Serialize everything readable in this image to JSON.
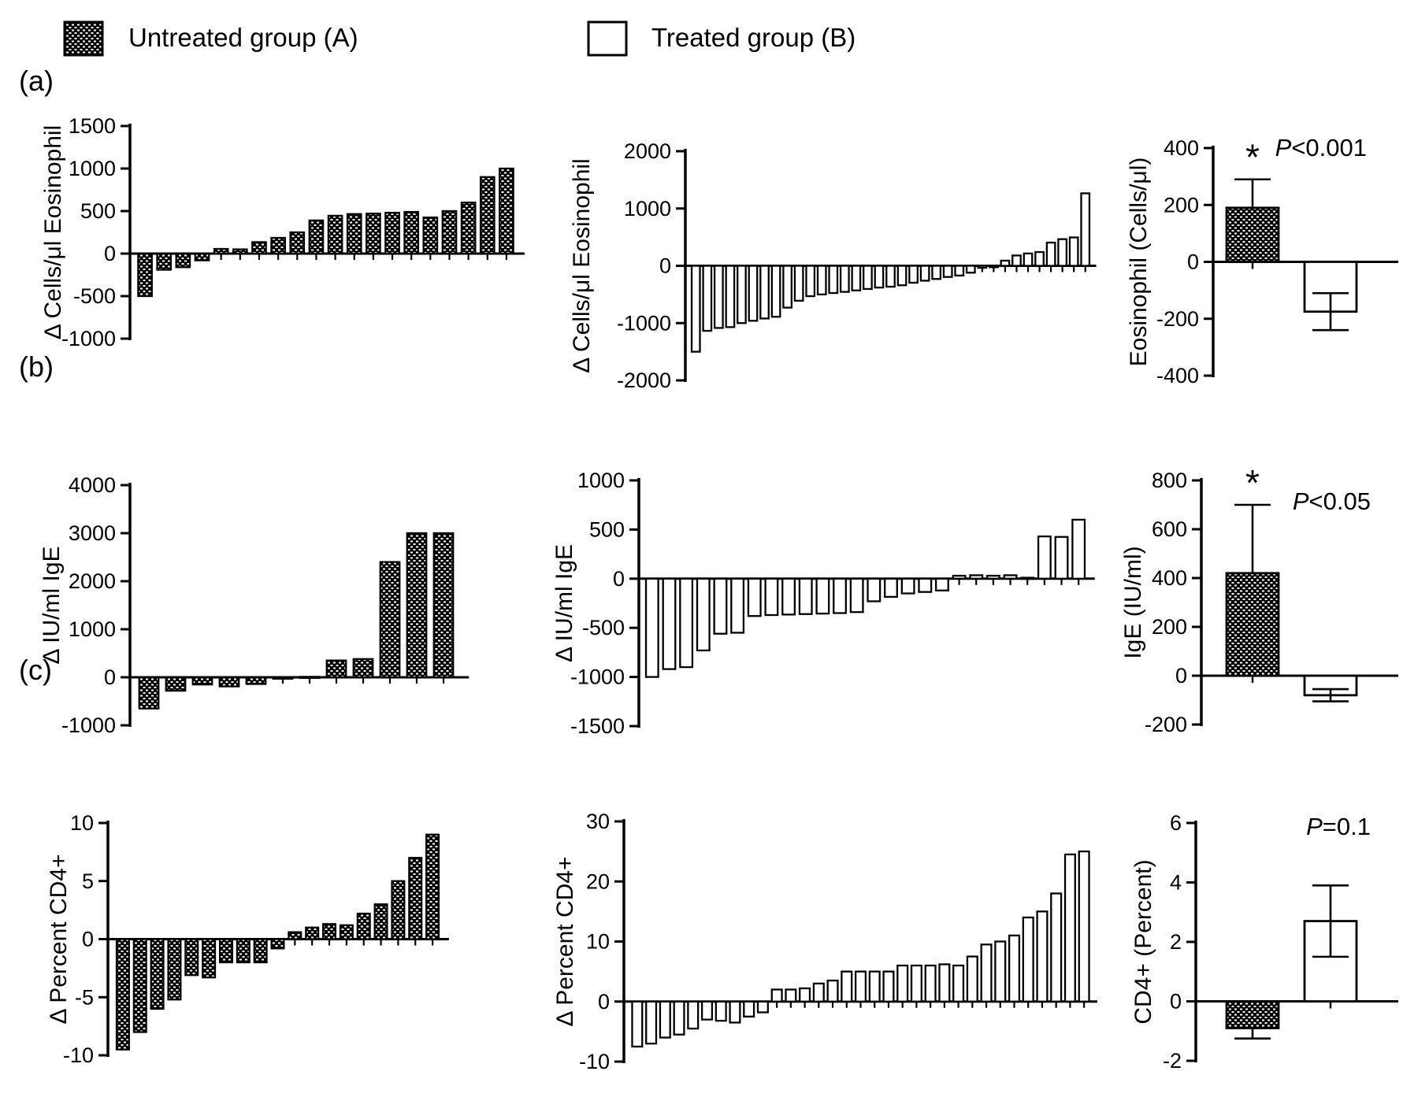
{
  "legend": {
    "untreated_label": "Untreated group (A)",
    "treated_label": "Treated group (B)"
  },
  "panel_letters": [
    "(a)",
    "(b)",
    "(c)"
  ],
  "chart_data": [
    {
      "id": "a_untreated",
      "type": "bar",
      "subtype": "waterfall",
      "group": "Untreated group (A)",
      "fill": "checker",
      "ylabel": "Δ Cells/μl Eosinophil",
      "ylim": [
        -1000,
        1500
      ],
      "yticks": [
        1500,
        1000,
        500,
        0,
        -500,
        -1000
      ],
      "values": [
        -500,
        -190,
        -160,
        -80,
        55,
        50,
        135,
        185,
        250,
        390,
        445,
        465,
        470,
        480,
        490,
        425,
        500,
        600,
        900,
        1000
      ]
    },
    {
      "id": "a_treated",
      "type": "bar",
      "subtype": "waterfall",
      "group": "Treated group (B)",
      "fill": "plain",
      "ylabel": "Δ Cells/μl Eosinophil",
      "ylim": [
        -2000,
        2000
      ],
      "yticks": [
        2000,
        1000,
        0,
        -1000,
        -2000
      ],
      "values": [
        -1500,
        -1135,
        -1085,
        -1070,
        -1000,
        -960,
        -920,
        -890,
        -730,
        -610,
        -530,
        -500,
        -475,
        -455,
        -430,
        -405,
        -380,
        -365,
        -340,
        -295,
        -260,
        -230,
        -195,
        -170,
        -120,
        -35,
        -25,
        90,
        180,
        215,
        240,
        405,
        465,
        495,
        1265
      ]
    },
    {
      "id": "a_summary",
      "type": "bar",
      "subtype": "group-mean",
      "ylabel": "Eosinophil (Cells/μl)",
      "ylim": [
        -400,
        400
      ],
      "yticks": [
        400,
        200,
        0,
        -200,
        -400
      ],
      "p_label": "P<0.001",
      "bars": [
        {
          "group": "Untreated group (A)",
          "fill": "checker",
          "value": 190,
          "err": [
            190,
            290
          ],
          "caps": "hi",
          "star": true
        },
        {
          "group": "Treated group (B)",
          "fill": "plain",
          "value": -175,
          "err": [
            -240,
            -110
          ],
          "caps": "both",
          "star": false
        }
      ]
    },
    {
      "id": "b_untreated",
      "type": "bar",
      "subtype": "waterfall",
      "group": "Untreated group (A)",
      "fill": "checker",
      "ylabel": "Δ IU/ml IgE",
      "ylim": [
        -1000,
        4000
      ],
      "yticks": [
        4000,
        3000,
        2000,
        1000,
        0,
        -1000
      ],
      "values": [
        -650,
        -280,
        -150,
        -190,
        -140,
        -30,
        10,
        350,
        380,
        2400,
        3000,
        3000
      ]
    },
    {
      "id": "b_treated",
      "type": "bar",
      "subtype": "waterfall",
      "group": "Treated group (B)",
      "fill": "plain",
      "ylabel": "Δ IU/ml IgE",
      "ylim": [
        -1500,
        1000
      ],
      "yticks": [
        1000,
        500,
        0,
        -500,
        -1000,
        -1500
      ],
      "values": [
        -1000,
        -920,
        -900,
        -730,
        -560,
        -550,
        -380,
        -370,
        -365,
        -360,
        -355,
        -350,
        -340,
        -230,
        -185,
        -150,
        -135,
        -120,
        30,
        35,
        30,
        35,
        10,
        430,
        425,
        600
      ]
    },
    {
      "id": "b_summary",
      "type": "bar",
      "subtype": "group-mean",
      "ylabel": "IgE (IU/ml)",
      "ylim": [
        -200,
        800
      ],
      "yticks": [
        800,
        600,
        400,
        200,
        0,
        -200
      ],
      "p_label": "P<0.05",
      "bars": [
        {
          "group": "Untreated group (A)",
          "fill": "checker",
          "value": 420,
          "err": [
            420,
            700
          ],
          "caps": "hi",
          "star": true
        },
        {
          "group": "Treated group (B)",
          "fill": "plain",
          "value": -80,
          "err": [
            -105,
            -55
          ],
          "caps": "both",
          "star": false
        }
      ]
    },
    {
      "id": "c_untreated",
      "type": "bar",
      "subtype": "waterfall",
      "group": "Untreated group (A)",
      "fill": "checker",
      "ylabel": "Δ Percent CD4+",
      "ylim": [
        -10,
        10
      ],
      "yticks": [
        10,
        5,
        0,
        -5,
        -10
      ],
      "values": [
        -9.5,
        -8,
        -6,
        -5.2,
        -3.1,
        -3.3,
        -2,
        -2,
        -2,
        -0.8,
        0.6,
        1,
        1.3,
        1.2,
        2.2,
        3,
        5,
        7,
        9
      ]
    },
    {
      "id": "c_treated",
      "type": "bar",
      "subtype": "waterfall",
      "group": "Treated group (B)",
      "fill": "plain",
      "ylabel": "Δ Percent CD4+",
      "ylim": [
        -10,
        30
      ],
      "yticks": [
        30,
        20,
        10,
        0,
        -10
      ],
      "values": [
        -7.5,
        -7,
        -6,
        -5.5,
        -4.5,
        -3,
        -3.2,
        -3.5,
        -2.5,
        -1.8,
        2,
        2,
        2.2,
        3,
        3.5,
        5,
        5,
        5,
        5,
        6,
        6,
        6,
        6.2,
        6,
        7.5,
        9.5,
        10,
        11,
        14,
        15,
        18,
        24.5,
        25
      ]
    },
    {
      "id": "c_summary",
      "type": "bar",
      "subtype": "group-mean",
      "ylabel": "CD4+ (Percent)",
      "ylim": [
        -2,
        6
      ],
      "yticks": [
        6,
        4,
        2,
        0,
        -2
      ],
      "p_label": "P=0.1",
      "bars": [
        {
          "group": "Untreated group (A)",
          "fill": "checker",
          "value": -0.9,
          "err": [
            -1.25,
            -0.9
          ],
          "caps": "lo",
          "star": false
        },
        {
          "group": "Treated group (B)",
          "fill": "plain",
          "value": 2.7,
          "err": [
            1.5,
            3.9
          ],
          "caps": "both",
          "star": false
        }
      ]
    }
  ]
}
